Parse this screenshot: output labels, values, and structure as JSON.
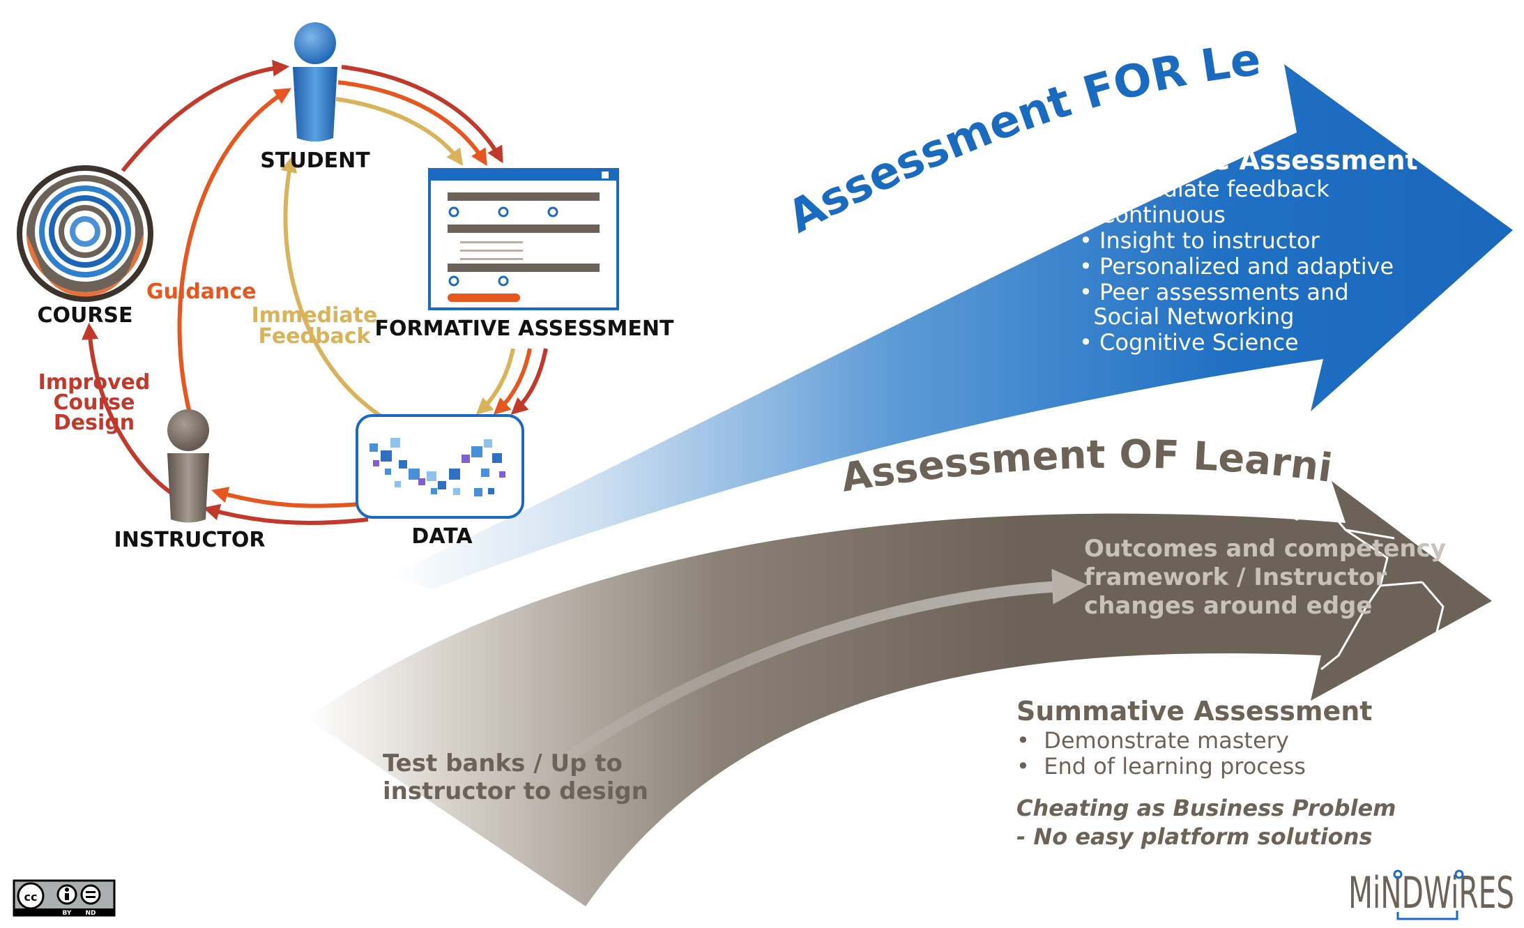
{
  "colors": {
    "blue": "#1a6bc0",
    "brown": "#6d6257",
    "red": "#c0392b",
    "orange": "#e5571f",
    "gold": "#d9b25c",
    "white": "#ffffff"
  },
  "cycle": {
    "nodes": {
      "student": "STUDENT",
      "formative": "FORMATIVE ASSESSMENT",
      "data": "DATA",
      "instructor": "INSTRUCTOR",
      "course": "COURSE"
    },
    "arrows": {
      "guidance": "Guidance",
      "feedback_line1": "Immediate",
      "feedback_line2": "Feedback",
      "improved_line1": "Improved",
      "improved_line2": "Course",
      "improved_line3": "Design"
    }
  },
  "for_learning": {
    "title": "Assessment FOR Learning",
    "heading": "Formative Assessment",
    "bullets": [
      "• Immediate feedback",
      "• Continuous",
      "• Insight to instructor",
      "• Personalized and adaptive",
      "• Peer assessments and",
      "  Social Networking",
      "• Cognitive Science"
    ]
  },
  "of_learning": {
    "title": "Assessment OF Learning",
    "outcomes": [
      "Outcomes and competency",
      "framework / Instructor",
      "changes around edge"
    ],
    "test_banks": [
      "Test banks / Up to",
      "instructor to design"
    ],
    "heading": "Summative Assessment",
    "bullets": [
      "•  Demonstrate mastery",
      "•  End of learning process"
    ],
    "cheating": [
      "Cheating as Business Problem",
      "- No easy platform solutions"
    ]
  },
  "license": {
    "cc": "cc",
    "by": "BY",
    "nd": "ND"
  },
  "logo": {
    "text": "MiNDWiRES"
  }
}
